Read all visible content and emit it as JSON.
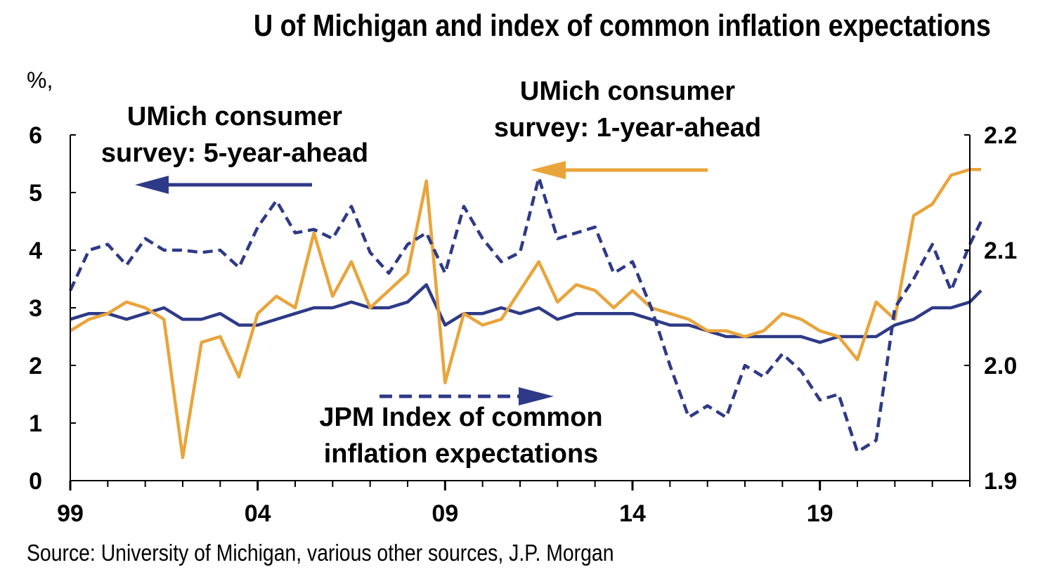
{
  "title": "U of Michigan and index of common inflation expectations",
  "source": "Source: University of Michigan, various other sources, J.P. Morgan",
  "colors": {
    "navy": "#2E3A87",
    "gold": "#E9A43A",
    "axis": "#000000"
  },
  "chart_data": {
    "type": "line",
    "title": "U of Michigan and index of common inflation expectations",
    "ylabel_left": "%,",
    "x_ticks": [
      "99",
      "04",
      "09",
      "14",
      "19"
    ],
    "x_tick_years": [
      1999,
      2004,
      2009,
      2014,
      2019
    ],
    "xlim": [
      1999,
      2023
    ],
    "ylim_left": [
      0,
      6
    ],
    "yticks_left": [
      "0",
      "1",
      "2",
      "3",
      "4",
      "5",
      "6"
    ],
    "ylim_right": [
      1.9,
      2.2
    ],
    "yticks_right": [
      "1.9",
      "2.0",
      "2.1",
      "2.2"
    ],
    "grid": false,
    "annotations": {
      "five_year": [
        "UMich consumer",
        "survey: 5-year-ahead"
      ],
      "one_year": [
        "UMich consumer",
        "survey: 1-year-ahead"
      ],
      "jpm": [
        "JPM Index of common",
        "inflation expectations"
      ]
    },
    "series": [
      {
        "key": "umich_5yr",
        "axis": "left",
        "style": "solid",
        "color": "#2E3A87",
        "x": [
          1999.0,
          1999.5,
          2000.0,
          2000.5,
          2001.0,
          2001.5,
          2002.0,
          2002.5,
          2003.0,
          2003.5,
          2004.0,
          2004.5,
          2005.0,
          2005.5,
          2006.0,
          2006.5,
          2007.0,
          2007.5,
          2008.0,
          2008.5,
          2009.0,
          2009.5,
          2010.0,
          2010.5,
          2011.0,
          2011.5,
          2012.0,
          2012.5,
          2013.0,
          2013.5,
          2014.0,
          2014.5,
          2015.0,
          2015.5,
          2016.0,
          2016.5,
          2017.0,
          2017.5,
          2018.0,
          2018.5,
          2019.0,
          2019.5,
          2020.0,
          2020.5,
          2021.0,
          2021.5,
          2022.0,
          2022.5,
          2023.0,
          2023.3
        ],
        "values": [
          2.8,
          2.9,
          2.9,
          2.8,
          2.9,
          3.0,
          2.8,
          2.8,
          2.9,
          2.7,
          2.7,
          2.8,
          2.9,
          3.0,
          3.0,
          3.1,
          3.0,
          3.0,
          3.1,
          3.4,
          2.7,
          2.9,
          2.9,
          3.0,
          2.9,
          3.0,
          2.8,
          2.9,
          2.9,
          2.9,
          2.9,
          2.8,
          2.7,
          2.7,
          2.6,
          2.5,
          2.5,
          2.5,
          2.5,
          2.5,
          2.4,
          2.5,
          2.5,
          2.5,
          2.7,
          2.8,
          3.0,
          3.0,
          3.1,
          3.3
        ]
      },
      {
        "key": "umich_1yr",
        "axis": "left",
        "style": "solid",
        "color": "#E9A43A",
        "x": [
          1999.0,
          1999.5,
          2000.0,
          2000.5,
          2001.0,
          2001.5,
          2002.0,
          2002.5,
          2003.0,
          2003.5,
          2004.0,
          2004.5,
          2005.0,
          2005.5,
          2006.0,
          2006.5,
          2007.0,
          2007.5,
          2008.0,
          2008.5,
          2009.0,
          2009.5,
          2010.0,
          2010.5,
          2011.0,
          2011.5,
          2012.0,
          2012.5,
          2013.0,
          2013.5,
          2014.0,
          2014.5,
          2015.0,
          2015.5,
          2016.0,
          2016.5,
          2017.0,
          2017.5,
          2018.0,
          2018.5,
          2019.0,
          2019.5,
          2020.0,
          2020.5,
          2021.0,
          2021.5,
          2022.0,
          2022.5,
          2023.0,
          2023.3
        ],
        "values": [
          2.6,
          2.8,
          2.9,
          3.1,
          3.0,
          2.8,
          0.4,
          2.4,
          2.5,
          1.8,
          2.9,
          3.2,
          3.0,
          4.3,
          3.2,
          3.8,
          3.0,
          3.3,
          3.6,
          5.2,
          1.7,
          2.9,
          2.7,
          2.8,
          3.3,
          3.8,
          3.1,
          3.4,
          3.3,
          3.0,
          3.3,
          3.0,
          2.9,
          2.8,
          2.6,
          2.6,
          2.5,
          2.6,
          2.9,
          2.8,
          2.6,
          2.5,
          2.1,
          3.1,
          2.8,
          4.6,
          4.8,
          5.3,
          5.4,
          5.4
        ]
      },
      {
        "key": "jpm_index",
        "axis": "right",
        "style": "dashed",
        "color": "#2E3A87",
        "x": [
          1999.0,
          1999.5,
          2000.0,
          2000.5,
          2001.0,
          2001.5,
          2002.0,
          2002.5,
          2003.0,
          2003.5,
          2004.0,
          2004.5,
          2005.0,
          2005.5,
          2006.0,
          2006.5,
          2007.0,
          2007.5,
          2008.0,
          2008.5,
          2009.0,
          2009.5,
          2010.0,
          2010.5,
          2011.0,
          2011.5,
          2012.0,
          2012.5,
          2013.0,
          2013.5,
          2014.0,
          2014.5,
          2015.0,
          2015.5,
          2016.0,
          2016.5,
          2017.0,
          2017.5,
          2018.0,
          2018.5,
          2019.0,
          2019.5,
          2020.0,
          2020.5,
          2021.0,
          2021.5,
          2022.0,
          2022.5,
          2023.0,
          2023.3
        ],
        "values": [
          2.065,
          2.1,
          2.105,
          2.087,
          2.11,
          2.1,
          2.1,
          2.098,
          2.1,
          2.085,
          2.12,
          2.143,
          2.115,
          2.118,
          2.11,
          2.138,
          2.098,
          2.08,
          2.105,
          2.115,
          2.08,
          2.138,
          2.11,
          2.09,
          2.098,
          2.163,
          2.11,
          2.115,
          2.12,
          2.08,
          2.09,
          2.05,
          2.0,
          1.955,
          1.965,
          1.955,
          2.0,
          1.99,
          2.01,
          1.995,
          1.97,
          1.975,
          1.925,
          1.935,
          2.05,
          2.075,
          2.105,
          2.065,
          2.105,
          2.125
        ]
      }
    ]
  }
}
